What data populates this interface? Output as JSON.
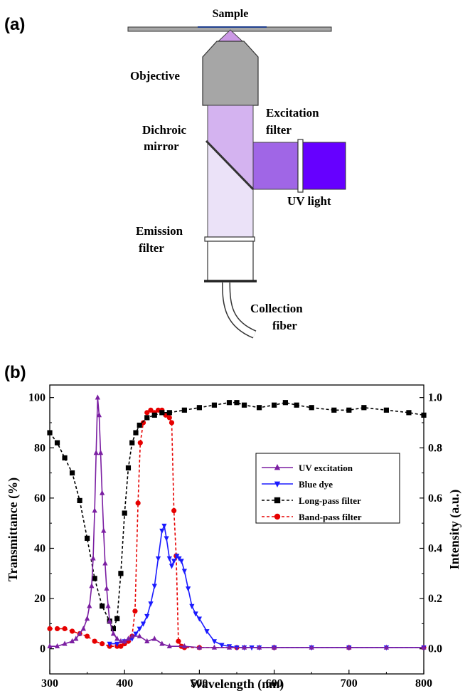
{
  "panel_a": {
    "label": "(a)",
    "labels": {
      "sample": "Sample",
      "objective": "Objective",
      "dichroic_1": "Dichroic",
      "dichroic_2": "mirror",
      "excitation_1": "Excitation",
      "excitation_2": "filter",
      "uv_light": "UV light",
      "emission_1": "Emission",
      "emission_2": "filter",
      "collection_1": "Collection",
      "collection_2": "fiber"
    },
    "colors": {
      "objective": "#a6a6a6",
      "sample_cone": "#cc99e6",
      "upper_beam": "#d4b3f0",
      "lower_beam": "#ebe2f8",
      "excitation_beam": "#a066e6",
      "uv_source": "#6600ff"
    }
  },
  "panel_b": {
    "label": "(b)"
  },
  "chart_data": {
    "type": "line",
    "xlabel": "Wavelength (nm)",
    "ylabel": "Transmittance (%)",
    "y2label": "Intensity (a.u.)",
    "xlim": [
      300,
      800
    ],
    "ylim": [
      -10,
      105
    ],
    "y2lim": [
      -0.1,
      1.05
    ],
    "xticks": [
      "300",
      "400",
      "500",
      "600",
      "700",
      "800"
    ],
    "yticks": [
      "0",
      "20",
      "40",
      "60",
      "80",
      "100"
    ],
    "y2ticks": [
      "0.0",
      "0.2",
      "0.4",
      "0.6",
      "0.8",
      "1.0"
    ],
    "legend_position": "right",
    "series": [
      {
        "name": "UV excitation",
        "axis": "right",
        "color": "#7b1fa2",
        "marker": "triangle-up",
        "dash": "solid",
        "x": [
          300,
          310,
          320,
          330,
          335,
          340,
          345,
          350,
          353,
          356,
          358,
          360,
          362,
          364,
          366,
          368,
          370,
          372,
          374,
          376,
          378,
          380,
          385,
          390,
          395,
          400,
          405,
          410,
          420,
          430,
          440,
          450,
          460,
          480,
          500,
          520,
          540,
          560,
          580,
          600,
          650,
          700,
          750,
          800
        ],
        "y": [
          0.01,
          0.01,
          0.02,
          0.03,
          0.04,
          0.06,
          0.08,
          0.12,
          0.17,
          0.25,
          0.36,
          0.55,
          0.78,
          1.0,
          0.93,
          0.78,
          0.62,
          0.47,
          0.34,
          0.24,
          0.17,
          0.11,
          0.06,
          0.04,
          0.03,
          0.03,
          0.04,
          0.05,
          0.05,
          0.03,
          0.04,
          0.02,
          0.01,
          0.01,
          0.005,
          0.005,
          0.005,
          0.005,
          0.005,
          0.005,
          0.005,
          0.005,
          0.005,
          0.005
        ]
      },
      {
        "name": "Blue dye",
        "axis": "right",
        "color": "#1a1aff",
        "marker": "triangle-down",
        "dash": "solid",
        "x": [
          380,
          390,
          400,
          410,
          415,
          420,
          425,
          430,
          435,
          440,
          445,
          450,
          453,
          456,
          460,
          463,
          466,
          470,
          473,
          476,
          480,
          485,
          490,
          495,
          500,
          510,
          520,
          530,
          540,
          550,
          560,
          570,
          580,
          600,
          650,
          700,
          750,
          800
        ],
        "y": [
          0.02,
          0.02,
          0.03,
          0.04,
          0.06,
          0.08,
          0.1,
          0.13,
          0.18,
          0.25,
          0.36,
          0.47,
          0.49,
          0.44,
          0.36,
          0.33,
          0.35,
          0.37,
          0.36,
          0.35,
          0.31,
          0.24,
          0.17,
          0.14,
          0.12,
          0.07,
          0.03,
          0.015,
          0.01,
          0.005,
          0.005,
          0.005,
          0.005,
          0.005,
          0.005,
          0.005,
          0.005,
          0.005
        ]
      },
      {
        "name": "Long-pass filter",
        "axis": "left",
        "color": "#000000",
        "marker": "square",
        "dash": "dashed",
        "x": [
          300,
          310,
          320,
          330,
          340,
          350,
          360,
          370,
          380,
          385,
          390,
          395,
          400,
          405,
          410,
          415,
          420,
          430,
          440,
          450,
          460,
          480,
          500,
          520,
          540,
          550,
          560,
          580,
          600,
          615,
          630,
          650,
          680,
          700,
          720,
          750,
          780,
          800
        ],
        "y": [
          86,
          82,
          76,
          70,
          59,
          44,
          28,
          17,
          11,
          8,
          12,
          30,
          54,
          72,
          82,
          86,
          89,
          92,
          93,
          94,
          94,
          95,
          96,
          97,
          98,
          98,
          97,
          96,
          97,
          98,
          97,
          96,
          95,
          95,
          96,
          95,
          94,
          93
        ]
      },
      {
        "name": "Band-pass filter",
        "axis": "left",
        "color": "#e60000",
        "marker": "circle",
        "dash": "dashed",
        "x": [
          300,
          310,
          320,
          330,
          340,
          350,
          360,
          370,
          380,
          390,
          395,
          400,
          405,
          410,
          414,
          418,
          421,
          425,
          430,
          435,
          440,
          445,
          450,
          455,
          460,
          463,
          466,
          469,
          472,
          476,
          480,
          500,
          550,
          600,
          700,
          800
        ],
        "y": [
          8,
          8,
          8,
          7,
          6,
          5,
          3,
          2,
          1,
          1,
          1,
          2,
          3,
          5,
          15,
          58,
          82,
          90,
          94,
          95,
          94,
          95,
          95,
          93,
          92,
          90,
          55,
          37,
          3,
          1,
          0.5,
          0.5,
          0.5,
          0.5,
          0.5,
          0.5
        ]
      }
    ]
  }
}
